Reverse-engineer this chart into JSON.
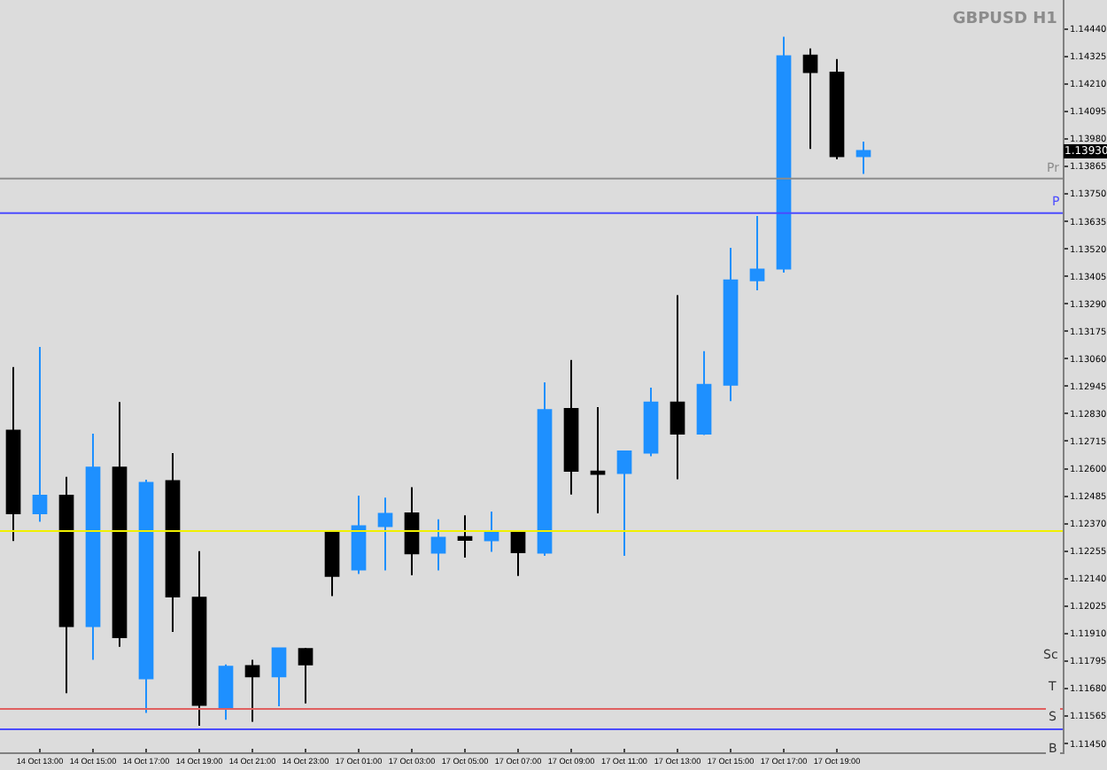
{
  "chart_data": {
    "type": "candlestick",
    "title": "GBPUSD H1",
    "categories": [
      null,
      "14 Oct 13:00",
      null,
      "14 Oct 15:00",
      null,
      "14 Oct 17:00",
      null,
      "14 Oct 19:00",
      null,
      "14 Oct 21:00",
      null,
      "14 Oct 23:00",
      null,
      "17 Oct 01:00",
      null,
      "17 Oct 03:00",
      null,
      "17 Oct 05:00",
      null,
      "17 Oct 07:00",
      null,
      "17 Oct 09:00",
      null,
      "17 Oct 11:00",
      null,
      "17 Oct 13:00",
      null,
      "17 Oct 15:00",
      null,
      "17 Oct 17:00",
      null,
      "17 Oct 19:00",
      null,
      null,
      null,
      null,
      null,
      null,
      null,
      null
    ],
    "ohlc": [
      [
        1.12759,
        1.13025,
        1.12297,
        1.12413
      ],
      [
        1.12413,
        1.13109,
        1.12378,
        1.12487
      ],
      [
        1.12487,
        1.12566,
        1.1166,
        1.11941
      ],
      [
        1.11941,
        1.12746,
        1.118,
        1.12605
      ],
      [
        1.12605,
        1.12879,
        1.11855,
        1.11894
      ],
      [
        1.11722,
        1.12554,
        1.11578,
        1.12541
      ],
      [
        1.12548,
        1.12665,
        1.11917,
        1.12065
      ],
      [
        1.1206,
        1.12255,
        1.11524,
        1.11611
      ],
      [
        1.11598,
        1.11781,
        1.11549,
        1.11771
      ],
      [
        1.11774,
        1.118,
        1.11541,
        1.11731
      ],
      [
        1.11731,
        1.11848,
        1.11606,
        1.11848
      ],
      [
        1.11845,
        1.1185,
        1.11618,
        1.11781
      ],
      [
        1.12334,
        1.12334,
        1.12067,
        1.12151
      ],
      [
        1.12178,
        1.12487,
        1.12159,
        1.12359
      ],
      [
        1.12359,
        1.12479,
        1.12174,
        1.12411
      ],
      [
        1.12413,
        1.12522,
        1.12154,
        1.12245
      ],
      [
        1.12248,
        1.12388,
        1.12174,
        1.12311
      ],
      [
        1.12314,
        1.12405,
        1.12228,
        1.12302
      ],
      [
        1.123,
        1.1242,
        1.12252,
        1.12331
      ],
      [
        1.12339,
        1.12339,
        1.12151,
        1.1225
      ],
      [
        1.12248,
        1.12961,
        1.12235,
        1.12845
      ],
      [
        1.1285,
        1.13055,
        1.12492,
        1.12591
      ],
      [
        1.12588,
        1.12857,
        1.12413,
        1.12578
      ],
      [
        1.12581,
        1.12672,
        1.12235,
        1.12672
      ],
      [
        1.12667,
        1.12939,
        1.12652,
        1.12877
      ],
      [
        1.12877,
        1.13326,
        1.12556,
        1.12746
      ],
      [
        1.12746,
        1.13092,
        1.12741,
        1.12951
      ],
      [
        1.12951,
        1.13524,
        1.12882,
        1.13388
      ],
      [
        1.13388,
        1.13657,
        1.13346,
        1.13433
      ],
      [
        1.13437,
        1.14407,
        1.1342,
        1.14326
      ],
      [
        1.14329,
        1.14358,
        1.13938,
        1.14259
      ],
      [
        1.14257,
        1.14314,
        1.13894,
        1.13907
      ],
      [
        1.13907,
        1.13968,
        1.13833,
        1.1393
      ],
      null,
      null,
      null,
      null,
      null,
      null,
      null
    ],
    "colors": [
      "#000000",
      "#1e90ff",
      "#000000",
      "#1e90ff",
      "#000000",
      "#1e90ff",
      "#000000",
      "#000000",
      "#1e90ff",
      "#000000",
      "#1e90ff",
      "#000000",
      "#000000",
      "#1e90ff",
      "#1e90ff",
      "#000000",
      "#1e90ff",
      "#000000",
      "#1e90ff",
      "#000000",
      "#1e90ff",
      "#000000",
      "#000000",
      "#1e90ff",
      "#1e90ff",
      "#000000",
      "#1e90ff",
      "#1e90ff",
      "#1e90ff",
      "#1e90ff",
      "#000000",
      "#000000",
      "#1e90ff",
      null,
      null,
      null,
      null,
      null,
      null,
      null
    ],
    "ylim": [
      1.11413,
      1.14561
    ],
    "yticks": [
      {
        "value": 1.1145,
        "label": "1.11450"
      },
      {
        "value": 1.11565,
        "label": "1.11565"
      },
      {
        "value": 1.1168,
        "label": "1.11680"
      },
      {
        "value": 1.11795,
        "label": "1.11795"
      },
      {
        "value": 1.1191,
        "label": "1.11910"
      },
      {
        "value": 1.12025,
        "label": "1.12025"
      },
      {
        "value": 1.1214,
        "label": "1.12140"
      },
      {
        "value": 1.12255,
        "label": "1.12255"
      },
      {
        "value": 1.1237,
        "label": "1.12370"
      },
      {
        "value": 1.12485,
        "label": "1.12485"
      },
      {
        "value": 1.126,
        "label": "1.12600"
      },
      {
        "value": 1.12715,
        "label": "1.12715"
      },
      {
        "value": 1.1283,
        "label": "1.12830"
      },
      {
        "value": 1.12945,
        "label": "1.12945"
      },
      {
        "value": 1.1306,
        "label": "1.13060"
      },
      {
        "value": 1.13175,
        "label": "1.13175"
      },
      {
        "value": 1.1329,
        "label": "1.13290"
      },
      {
        "value": 1.13405,
        "label": "1.13405"
      },
      {
        "value": 1.1352,
        "label": "1.13520"
      },
      {
        "value": 1.13635,
        "label": "1.13635"
      },
      {
        "value": 1.1375,
        "label": "1.13750"
      },
      {
        "value": 1.13865,
        "label": "1.13865"
      },
      {
        "value": 1.1398,
        "label": "1.13980"
      },
      {
        "value": 1.14095,
        "label": "1.14095"
      },
      {
        "value": 1.1421,
        "label": "1.14210"
      },
      {
        "value": 1.14325,
        "label": "1.14325"
      },
      {
        "value": 1.1444,
        "label": "1.14440"
      }
    ],
    "ref_lines": [
      {
        "axis": "y",
        "value": 1.13814,
        "label": "Pr",
        "color": "#8c8c8c"
      },
      {
        "axis": "y",
        "value": 1.13669,
        "label": "P",
        "color": "#4b4bff"
      },
      {
        "axis": "y",
        "value": 1.12339,
        "color": "#f0f000"
      },
      {
        "axis": "y",
        "value": 1.11594,
        "color": "#e06060"
      },
      {
        "axis": "y",
        "value": 1.11509,
        "color": "#4b4bff"
      }
    ],
    "annotations": [
      {
        "text": "1.13930",
        "y": 1.1393
      },
      "Sc",
      "T",
      "S",
      "B"
    ],
    "grid": false
  }
}
